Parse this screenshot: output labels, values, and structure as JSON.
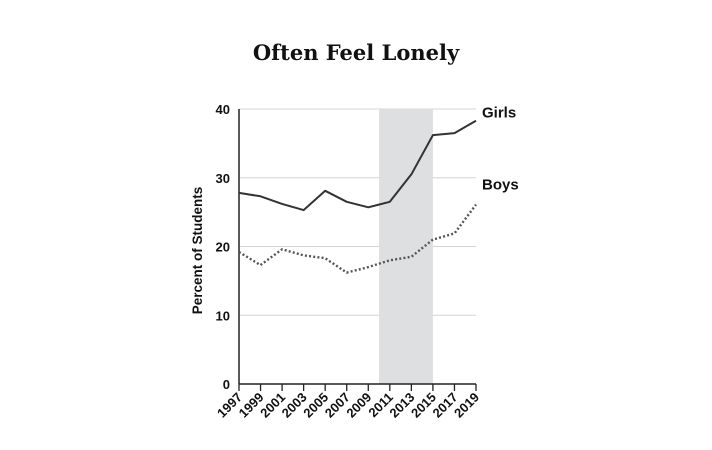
{
  "chart_data": {
    "type": "line",
    "title": "Often Feel Lonely",
    "xlabel": "",
    "ylabel": "Percent of Students",
    "x": [
      "1997",
      "1999",
      "2001",
      "2003",
      "2005",
      "2007",
      "2009",
      "2011",
      "2013",
      "2015",
      "2017",
      "2019"
    ],
    "ylim": [
      0,
      40
    ],
    "yticks": [
      0,
      10,
      20,
      30,
      40
    ],
    "grid": "horizontal",
    "shaded_region": {
      "from": "2010",
      "to": "2015"
    },
    "series": [
      {
        "name": "Girls",
        "style": "solid",
        "color": "#333333",
        "values": [
          27.8,
          27.3,
          26.2,
          25.3,
          28.1,
          26.5,
          25.7,
          26.5,
          30.5,
          36.2,
          36.5,
          38.3
        ]
      },
      {
        "name": "Boys",
        "style": "dotted",
        "color": "#555555",
        "values": [
          19.2,
          17.3,
          19.6,
          18.7,
          18.3,
          16.2,
          17.0,
          18.0,
          18.5,
          21.0,
          21.9,
          26.1
        ]
      }
    ]
  }
}
